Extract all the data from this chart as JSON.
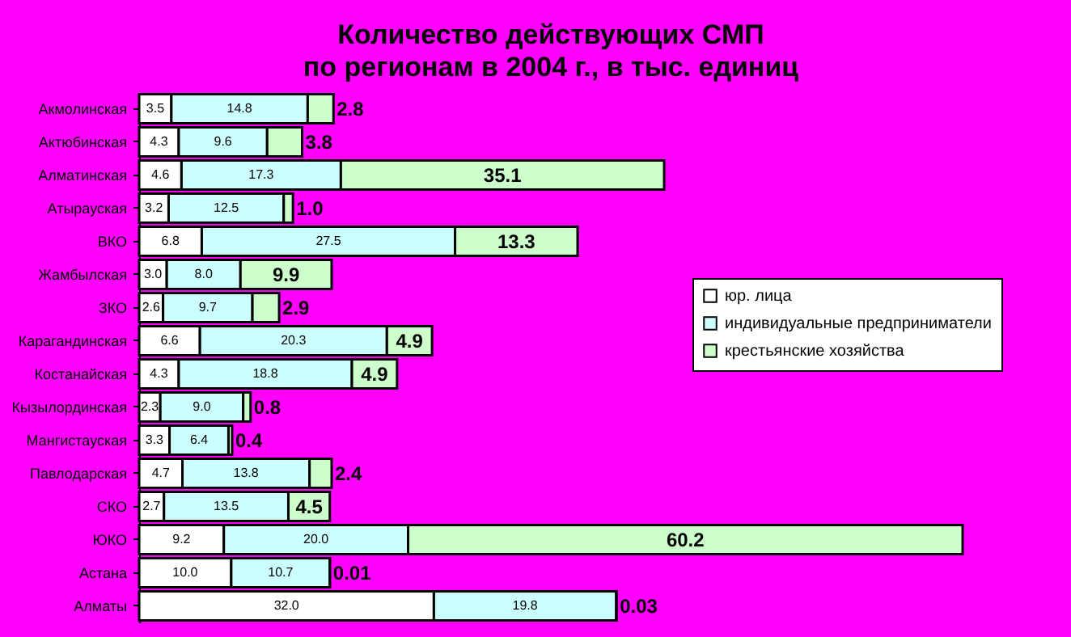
{
  "chart_data": {
    "type": "bar",
    "orientation": "horizontal",
    "stacked": true,
    "title": "Количество действующих СМП\nпо регионам в 2004 г., в тыс. единиц",
    "categories": [
      "Акмолинская",
      "Актюбинская",
      "Алматинская",
      "Атырауская",
      "ВКО",
      "Жамбылская",
      "ЗКО",
      "Карагандинская",
      "Костанайская",
      "Кызылординская",
      "Мангистауская",
      "Павлодарская",
      "СКО",
      "ЮКО",
      "Астана",
      "Алматы"
    ],
    "series": [
      {
        "name": "юр. лица",
        "color": "#ffffff",
        "values": [
          3.5,
          4.3,
          4.6,
          3.2,
          6.8,
          3.0,
          2.6,
          6.6,
          4.3,
          2.3,
          3.3,
          4.7,
          2.7,
          9.2,
          10.0,
          32.0
        ],
        "value_labels": [
          "3.5",
          "4.3",
          "4.6",
          "3.2",
          "6.8",
          "3.0",
          "2.6",
          "6.6",
          "4.3",
          "2.3",
          "3.3",
          "4.7",
          "2.7",
          "9.2",
          "10.0",
          "32.0"
        ]
      },
      {
        "name": "индивидуальные предприниматели",
        "color": "#ccffff",
        "values": [
          14.8,
          9.6,
          17.3,
          12.5,
          27.5,
          8.0,
          9.7,
          20.3,
          18.8,
          9.0,
          6.4,
          13.8,
          13.5,
          20.0,
          10.7,
          19.8
        ],
        "value_labels": [
          "14.8",
          "9.6",
          "17.3",
          "12.5",
          "27.5",
          "8.0",
          "9.7",
          "20.3",
          "18.8",
          "9.0",
          "6.4",
          "13.8",
          "13.5",
          "20.0",
          "10.7",
          "19.8"
        ]
      },
      {
        "name": "крестьянские хозяйства",
        "color": "#ccffcc",
        "values": [
          2.8,
          3.8,
          35.1,
          1.0,
          13.3,
          9.9,
          2.9,
          4.9,
          4.9,
          0.8,
          0.4,
          2.4,
          4.5,
          60.2,
          0.01,
          0.03
        ],
        "value_labels": [
          "2.8",
          "3.8",
          "35.1",
          "1.0",
          "13.3",
          "9.9",
          "2.9",
          "4.9",
          "4.9",
          "0.8",
          "0.4",
          "2.4",
          "4.5",
          "60.2",
          "0.01",
          "0.03"
        ]
      }
    ],
    "data_labels": true,
    "legend": "right",
    "grid": false
  }
}
